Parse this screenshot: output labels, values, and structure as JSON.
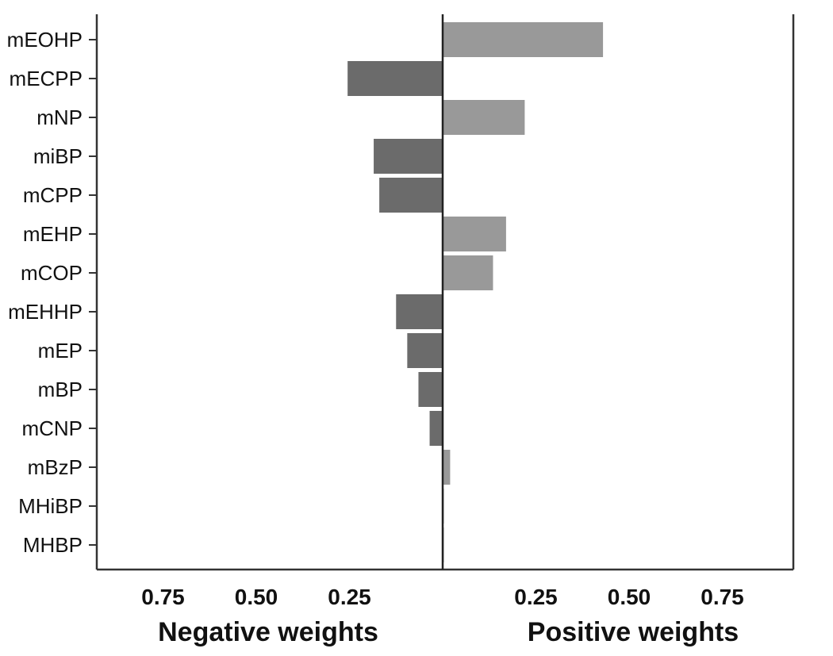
{
  "chart_data": {
    "type": "bar",
    "orientation": "horizontal",
    "categories": [
      "mEOHP",
      "mECPP",
      "mNP",
      "miBP",
      "mCPP",
      "mEHP",
      "mCOP",
      "mEHHP",
      "mEP",
      "mBP",
      "mCNP",
      "mBzP",
      "MHiBP",
      "MHBP"
    ],
    "values": [
      0.43,
      -0.255,
      0.22,
      -0.185,
      -0.17,
      0.17,
      0.135,
      -0.125,
      -0.095,
      -0.065,
      -0.035,
      0.02,
      0.003,
      0.003
    ],
    "xlim": [
      -0.92,
      0.92
    ],
    "negative_ticks": [
      "0.75",
      "0.50",
      "0.25"
    ],
    "negative_tick_values": [
      0.75,
      0.5,
      0.25
    ],
    "positive_ticks": [
      "0.25",
      "0.50",
      "0.75"
    ],
    "positive_tick_values": [
      0.25,
      0.5,
      0.75
    ],
    "negative_label": "Negative weights",
    "positive_label": "Positive weights",
    "colors": {
      "positive": "#999999",
      "negative": "#6b6b6b",
      "axis": "#333333"
    },
    "grid": false
  }
}
